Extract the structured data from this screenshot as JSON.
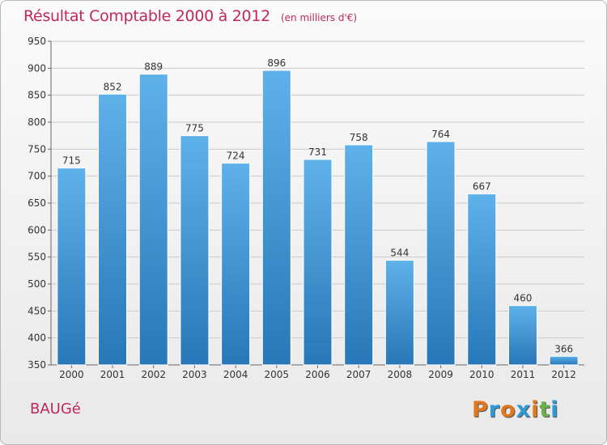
{
  "title": "Résultat Comptable 2000 à 2012",
  "subtitle": "(en milliers d'€)",
  "place": "BAUGé",
  "logo": {
    "text": "Proxiti",
    "colors": [
      "#e07820",
      "#2f9ad8",
      "#e07820",
      "#2f9ad8",
      "#e07820",
      "#6ab04c",
      "#2f9ad8"
    ]
  },
  "colors": {
    "bar_top": "#5fb1ea",
    "bar_bottom": "#2877b8",
    "title": "#c0285a"
  },
  "chart_data": {
    "type": "bar",
    "title": "Résultat Comptable 2000 à 2012",
    "xlabel": "",
    "ylabel": "",
    "categories": [
      "2000",
      "2001",
      "2002",
      "2003",
      "2004",
      "2005",
      "2006",
      "2007",
      "2008",
      "2009",
      "2010",
      "2011",
      "2012"
    ],
    "values": [
      715,
      852,
      889,
      775,
      724,
      896,
      731,
      758,
      544,
      764,
      667,
      460,
      366
    ],
    "ylim": [
      350,
      950
    ],
    "yticks": [
      350,
      400,
      450,
      500,
      550,
      600,
      650,
      700,
      750,
      800,
      850,
      900,
      950
    ],
    "grid": true
  }
}
